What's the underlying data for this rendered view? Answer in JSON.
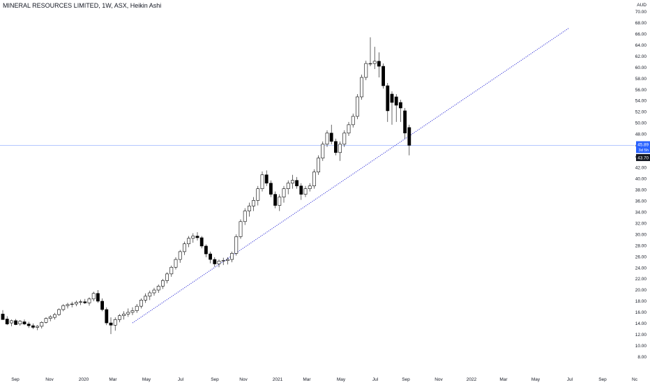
{
  "chart_data": {
    "type": "candlestick",
    "title": "MINERAL RESOURCES LIMITED, 1W, ASX, Heikin Ashi",
    "currency": "AUD",
    "ylim": [
      8,
      70
    ],
    "yticks": [
      "8.00",
      "10.00",
      "12.00",
      "14.00",
      "16.00",
      "18.00",
      "20.00",
      "22.00",
      "24.00",
      "26.00",
      "28.00",
      "30.00",
      "32.00",
      "34.00",
      "36.00",
      "38.00",
      "40.00",
      "42.00",
      "44.00",
      "46.00",
      "48.00",
      "50.00",
      "52.00",
      "54.00",
      "56.00",
      "58.00",
      "60.00",
      "62.00",
      "64.00",
      "66.00",
      "68.00",
      "70.00"
    ],
    "xticks": [
      "Sep",
      "Nov",
      "2020",
      "Mar",
      "May",
      "Jul",
      "Sep",
      "Nov",
      "2021",
      "Mar",
      "May",
      "Jul",
      "Sep",
      "Nov",
      "2022",
      "Mar",
      "May",
      "Jul",
      "Sep",
      "Nc"
    ],
    "last_price": "45.89",
    "countdown": "3d 5h",
    "low_marker": "43.70",
    "colors": {
      "up_fill": "#ffffff",
      "down_fill": "#000000",
      "wick": "#000000",
      "trendline": "#2d2dd6",
      "price_line": "#2962ff",
      "price_label_bg": "#2962ff",
      "low_label_bg": "#131722"
    },
    "trendline": {
      "from": {
        "week": 30,
        "price": 14.0
      },
      "to": {
        "week": 131,
        "price": 67.0
      }
    },
    "candles": [
      [
        15.6,
        16.3,
        14.6,
        14.6
      ],
      [
        14.7,
        15.2,
        13.6,
        13.8
      ],
      [
        14.0,
        14.6,
        13.4,
        14.4
      ],
      [
        14.4,
        14.7,
        13.6,
        13.7
      ],
      [
        13.8,
        14.5,
        13.5,
        14.3
      ],
      [
        14.2,
        14.6,
        13.6,
        13.8
      ],
      [
        13.8,
        14.2,
        13.1,
        13.5
      ],
      [
        13.5,
        13.9,
        12.9,
        13.2
      ],
      [
        13.2,
        13.6,
        12.7,
        13.4
      ],
      [
        13.4,
        14.3,
        13.0,
        14.1
      ],
      [
        14.1,
        15.0,
        13.9,
        14.8
      ],
      [
        14.8,
        15.4,
        14.3,
        15.1
      ],
      [
        15.0,
        15.8,
        14.6,
        15.5
      ],
      [
        15.5,
        16.6,
        15.3,
        16.4
      ],
      [
        16.4,
        17.4,
        16.1,
        17.1
      ],
      [
        17.1,
        17.6,
        16.6,
        17.3
      ],
      [
        17.3,
        17.8,
        16.8,
        17.4
      ],
      [
        17.4,
        18.0,
        17.0,
        17.7
      ],
      [
        17.7,
        18.2,
        17.2,
        17.8
      ],
      [
        17.8,
        18.3,
        17.4,
        17.6
      ],
      [
        17.6,
        18.6,
        17.1,
        18.3
      ],
      [
        18.3,
        19.6,
        17.9,
        19.3
      ],
      [
        19.3,
        19.9,
        17.6,
        17.9
      ],
      [
        17.9,
        18.4,
        16.1,
        16.4
      ],
      [
        16.4,
        16.8,
        13.6,
        14.0
      ],
      [
        14.0,
        15.0,
        12.0,
        13.6
      ],
      [
        13.6,
        15.0,
        12.6,
        14.6
      ],
      [
        14.6,
        15.6,
        14.1,
        15.3
      ],
      [
        15.3,
        16.1,
        14.6,
        15.6
      ],
      [
        15.6,
        16.6,
        15.1,
        15.9
      ],
      [
        15.9,
        16.8,
        15.4,
        16.2
      ],
      [
        16.2,
        17.4,
        15.8,
        17.0
      ],
      [
        17.0,
        18.4,
        16.6,
        18.1
      ],
      [
        18.1,
        19.3,
        17.6,
        18.8
      ],
      [
        18.8,
        19.8,
        18.1,
        19.4
      ],
      [
        19.4,
        20.3,
        18.9,
        19.9
      ],
      [
        19.9,
        20.9,
        19.4,
        20.6
      ],
      [
        20.6,
        21.9,
        20.1,
        21.6
      ],
      [
        21.6,
        23.1,
        21.1,
        22.8
      ],
      [
        22.8,
        24.3,
        22.3,
        24.0
      ],
      [
        24.0,
        25.8,
        23.6,
        25.4
      ],
      [
        25.4,
        27.1,
        24.8,
        26.8
      ],
      [
        26.8,
        28.6,
        26.2,
        28.2
      ],
      [
        28.2,
        29.6,
        27.6,
        29.2
      ],
      [
        29.2,
        30.1,
        28.4,
        29.6
      ],
      [
        29.6,
        30.3,
        28.8,
        29.3
      ],
      [
        29.3,
        29.6,
        27.4,
        27.8
      ],
      [
        27.8,
        28.1,
        25.8,
        26.4
      ],
      [
        26.4,
        26.8,
        24.7,
        25.4
      ],
      [
        25.4,
        25.8,
        24.1,
        24.6
      ],
      [
        24.6,
        25.4,
        24.0,
        25.1
      ],
      [
        25.1,
        25.7,
        24.4,
        25.2
      ],
      [
        25.2,
        25.8,
        24.5,
        25.4
      ],
      [
        25.4,
        26.8,
        24.9,
        26.5
      ],
      [
        26.5,
        29.9,
        26.1,
        29.5
      ],
      [
        29.5,
        32.6,
        29.1,
        32.2
      ],
      [
        32.2,
        34.6,
        31.6,
        34.1
      ],
      [
        34.1,
        35.6,
        33.1,
        35.0
      ],
      [
        35.0,
        36.6,
        34.1,
        36.0
      ],
      [
        36.0,
        38.6,
        35.1,
        38.1
      ],
      [
        38.1,
        41.2,
        37.6,
        40.6
      ],
      [
        40.6,
        41.4,
        38.6,
        39.1
      ],
      [
        39.1,
        39.6,
        36.6,
        37.1
      ],
      [
        37.1,
        37.6,
        34.6,
        35.1
      ],
      [
        35.1,
        37.1,
        34.1,
        36.6
      ],
      [
        36.6,
        38.6,
        35.6,
        38.1
      ],
      [
        38.1,
        39.6,
        37.1,
        39.1
      ],
      [
        39.1,
        40.6,
        38.1,
        39.6
      ],
      [
        39.6,
        40.2,
        38.1,
        38.6
      ],
      [
        38.6,
        39.1,
        36.1,
        37.1
      ],
      [
        37.1,
        38.6,
        36.6,
        38.1
      ],
      [
        38.1,
        39.1,
        37.6,
        38.6
      ],
      [
        38.6,
        41.6,
        38.1,
        41.1
      ],
      [
        41.1,
        44.1,
        40.6,
        43.6
      ],
      [
        43.6,
        46.6,
        43.1,
        46.1
      ],
      [
        46.1,
        48.6,
        45.6,
        48.1
      ],
      [
        48.1,
        49.6,
        46.1,
        46.6
      ],
      [
        46.6,
        47.1,
        44.1,
        44.6
      ],
      [
        44.6,
        46.6,
        43.1,
        46.1
      ],
      [
        46.1,
        48.6,
        45.6,
        48.1
      ],
      [
        48.1,
        50.1,
        47.6,
        49.6
      ],
      [
        49.6,
        51.6,
        49.1,
        51.1
      ],
      [
        51.1,
        55.1,
        50.6,
        54.6
      ],
      [
        54.6,
        58.6,
        54.1,
        58.1
      ],
      [
        58.1,
        61.1,
        57.6,
        60.6
      ],
      [
        60.6,
        65.3,
        60.1,
        60.6
      ],
      [
        60.6,
        63.6,
        59.6,
        61.0
      ],
      [
        61.0,
        62.6,
        58.1,
        60.1
      ],
      [
        60.1,
        60.6,
        56.1,
        56.6
      ],
      [
        56.6,
        57.1,
        50.1,
        52.1
      ],
      [
        55.1,
        55.6,
        49.6,
        53.6
      ],
      [
        54.6,
        55.1,
        50.1,
        53.1
      ],
      [
        53.6,
        54.1,
        50.1,
        52.6
      ],
      [
        52.1,
        52.6,
        47.1,
        48.1
      ],
      [
        49.1,
        49.6,
        44.1,
        45.9
      ]
    ]
  }
}
